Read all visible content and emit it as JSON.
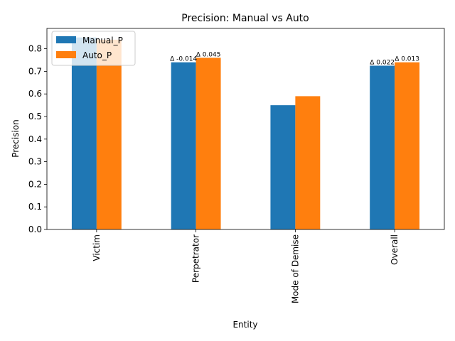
{
  "chart_data": {
    "type": "bar",
    "title": "Precision: Manual vs Auto",
    "xlabel": "Entity",
    "ylabel": "Precision",
    "categories": [
      "Victim",
      "Perpetrator",
      "Mode of Demise",
      "Overall"
    ],
    "series": [
      {
        "name": "Manual_P",
        "values": [
          0.85,
          0.74,
          0.55,
          0.725
        ],
        "color": "#1f77b4"
      },
      {
        "name": "Auto_P",
        "values": [
          0.84,
          0.76,
          0.59,
          0.74
        ],
        "color": "#ff7f0e"
      }
    ],
    "ylim": [
      0,
      0.89
    ],
    "yticks": [
      "0.0",
      "0.1",
      "0.2",
      "0.3",
      "0.4",
      "0.5",
      "0.6",
      "0.7",
      "0.8"
    ],
    "annotations": [
      {
        "category": "Perpetrator",
        "series": "Manual_P",
        "text": "Δ -0.014"
      },
      {
        "category": "Perpetrator",
        "series": "Auto_P",
        "text": "Δ 0.045"
      },
      {
        "category": "Overall",
        "series": "Manual_P",
        "text": "Δ 0.022"
      },
      {
        "category": "Overall",
        "series": "Auto_P",
        "text": "Δ 0.013"
      }
    ],
    "legend_position": "top-left",
    "grid": false,
    "x_tick_rotation": "vertical"
  }
}
